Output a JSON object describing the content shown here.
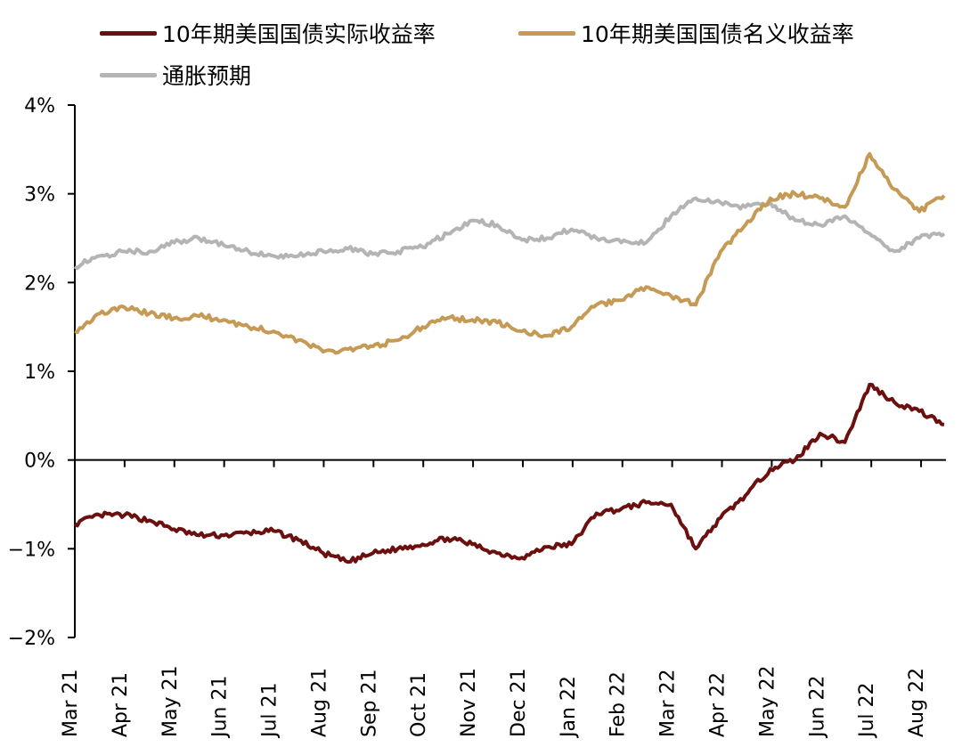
{
  "chart_data": {
    "type": "line",
    "title": "",
    "xlabel": "",
    "ylabel": "",
    "x_ticks": [
      "Mar 21",
      "Apr 21",
      "May 21",
      "Jun 21",
      "Jul 21",
      "Aug 21",
      "Sep 21",
      "Oct 21",
      "Nov 21",
      "Dec 21",
      "Jan 22",
      "Feb 22",
      "Mar 22",
      "Apr 22",
      "May 22",
      "Jun 22",
      "Jul 22",
      "Aug 22"
    ],
    "y_ticks": [
      "4%",
      "3%",
      "2%",
      "1%",
      "0%",
      "−1%",
      "−2%"
    ],
    "ylim": [
      -2,
      4
    ],
    "legend_position": "top",
    "series": [
      {
        "name": "10年期美国国债实际收益率",
        "color": "#6b0f0f",
        "x": [
          "Mar 21",
          "Mar 21 mid",
          "Apr 21",
          "Apr 21 mid",
          "May 21",
          "May 21 mid",
          "Jun 21",
          "Jun 21 mid",
          "Jul 21",
          "Jul 21 mid",
          "Aug 21",
          "Aug 21 mid",
          "Sep 21",
          "Sep 21 mid",
          "Oct 21",
          "Oct 21 mid",
          "Nov 21",
          "Nov 21 mid",
          "Dec 21",
          "Dec 21 mid",
          "Jan 22",
          "Jan 22 mid",
          "Feb 22",
          "Feb 22 mid",
          "Mar 22",
          "Mar 22 mid",
          "Apr 22",
          "Apr 22 mid",
          "May 22",
          "May 22 mid",
          "Jun 22",
          "Jun 22 mid",
          "Jul 22",
          "Jul 22 mid",
          "Aug 22",
          "Aug 22 end"
        ],
        "values": [
          -0.72,
          -0.62,
          -0.62,
          -0.68,
          -0.78,
          -0.85,
          -0.85,
          -0.82,
          -0.8,
          -0.9,
          -1.05,
          -1.15,
          -1.05,
          -1.0,
          -0.95,
          -0.88,
          -0.95,
          -1.05,
          -1.1,
          -0.98,
          -0.95,
          -0.6,
          -0.55,
          -0.48,
          -0.5,
          -1.0,
          -0.65,
          -0.4,
          -0.1,
          0.0,
          0.3,
          0.2,
          0.85,
          0.65,
          0.55,
          0.4
        ]
      },
      {
        "name": "10年期美国国债名义收益率",
        "color": "#c59a55",
        "x": [
          "Mar 21",
          "Mar 21 mid",
          "Apr 21",
          "Apr 21 mid",
          "May 21",
          "May 21 mid",
          "Jun 21",
          "Jun 21 mid",
          "Jul 21",
          "Jul 21 mid",
          "Aug 21",
          "Aug 21 mid",
          "Sep 21",
          "Sep 21 mid",
          "Oct 21",
          "Oct 21 mid",
          "Nov 21",
          "Nov 21 mid",
          "Dec 21",
          "Dec 21 mid",
          "Jan 22",
          "Jan 22 mid",
          "Feb 22",
          "Feb 22 mid",
          "Mar 22",
          "Mar 22 mid",
          "Apr 22",
          "Apr 22 mid",
          "May 22",
          "May 22 mid",
          "Jun 22",
          "Jun 22 mid",
          "Jul 22",
          "Jul 22 mid",
          "Aug 22",
          "Aug 22 end"
        ],
        "values": [
          1.45,
          1.65,
          1.72,
          1.65,
          1.6,
          1.62,
          1.58,
          1.5,
          1.45,
          1.35,
          1.22,
          1.25,
          1.28,
          1.35,
          1.5,
          1.6,
          1.58,
          1.55,
          1.45,
          1.4,
          1.5,
          1.75,
          1.8,
          1.95,
          1.85,
          1.75,
          2.35,
          2.65,
          2.95,
          3.0,
          2.95,
          2.85,
          3.45,
          3.05,
          2.8,
          2.98
        ]
      },
      {
        "name": "通胀预期",
        "color": "#b4b4b4",
        "x": [
          "Mar 21",
          "Mar 21 mid",
          "Apr 21",
          "Apr 21 mid",
          "May 21",
          "May 21 mid",
          "Jun 21",
          "Jun 21 mid",
          "Jul 21",
          "Jul 21 mid",
          "Aug 21",
          "Aug 21 mid",
          "Sep 21",
          "Sep 21 mid",
          "Oct 21",
          "Oct 21 mid",
          "Nov 21",
          "Nov 21 mid",
          "Dec 21",
          "Dec 21 mid",
          "Jan 22",
          "Jan 22 mid",
          "Feb 22",
          "Feb 22 mid",
          "Mar 22",
          "Mar 22 mid",
          "Apr 22",
          "Apr 22 mid",
          "May 22",
          "May 22 mid",
          "Jun 22",
          "Jun 22 mid",
          "Jul 22",
          "Jul 22 mid",
          "Aug 22",
          "Aug 22 end"
        ],
        "values": [
          2.18,
          2.3,
          2.35,
          2.35,
          2.45,
          2.5,
          2.42,
          2.35,
          2.3,
          2.3,
          2.35,
          2.38,
          2.32,
          2.35,
          2.4,
          2.55,
          2.7,
          2.65,
          2.48,
          2.5,
          2.6,
          2.5,
          2.45,
          2.45,
          2.75,
          2.95,
          2.9,
          2.85,
          2.9,
          2.7,
          2.65,
          2.75,
          2.55,
          2.35,
          2.5,
          2.55
        ]
      }
    ]
  }
}
